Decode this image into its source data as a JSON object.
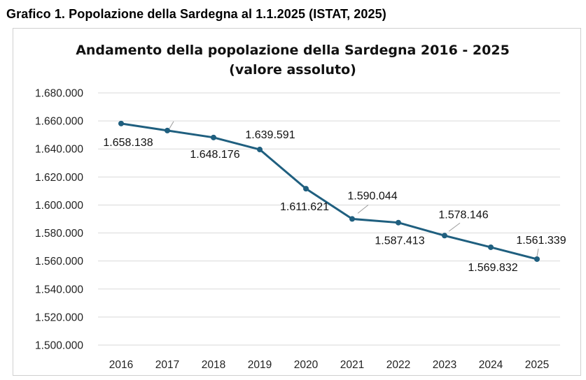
{
  "caption": "Grafico 1. Popolazione della Sardegna al 1.1.2025 (ISTAT, 2025)",
  "chart_data": {
    "type": "line",
    "title": "Andamento della popolazione della Sardegna 2016 - 2025",
    "subtitle": "(valore assoluto)",
    "xlabel": "",
    "ylabel": "",
    "categories": [
      "2016",
      "2017",
      "2018",
      "2019",
      "2020",
      "2021",
      "2022",
      "2023",
      "2024",
      "2025"
    ],
    "series": [
      {
        "name": "Popolazione",
        "values": [
          1658138,
          1653135,
          1648176,
          1639591,
          1611621,
          1590044,
          1587413,
          1578146,
          1569832,
          1561339
        ],
        "labels": [
          "1.658.138",
          "",
          "1.648.176",
          "1.639.591",
          "1.611.621",
          "1.590.044",
          "1.587.413",
          "1.578.146",
          "1.569.832",
          "1.561.339"
        ]
      }
    ],
    "ylim": [
      1500000,
      1680000
    ],
    "yticks": [
      1500000,
      1520000,
      1540000,
      1560000,
      1580000,
      1600000,
      1620000,
      1640000,
      1660000,
      1680000
    ],
    "ytick_labels": [
      "1.500.000",
      "1.520.000",
      "1.540.000",
      "1.560.000",
      "1.580.000",
      "1.600.000",
      "1.620.000",
      "1.640.000",
      "1.660.000",
      "1.680.000"
    ],
    "grid": true,
    "legend": "none",
    "line_color": "#1f5f7f"
  }
}
